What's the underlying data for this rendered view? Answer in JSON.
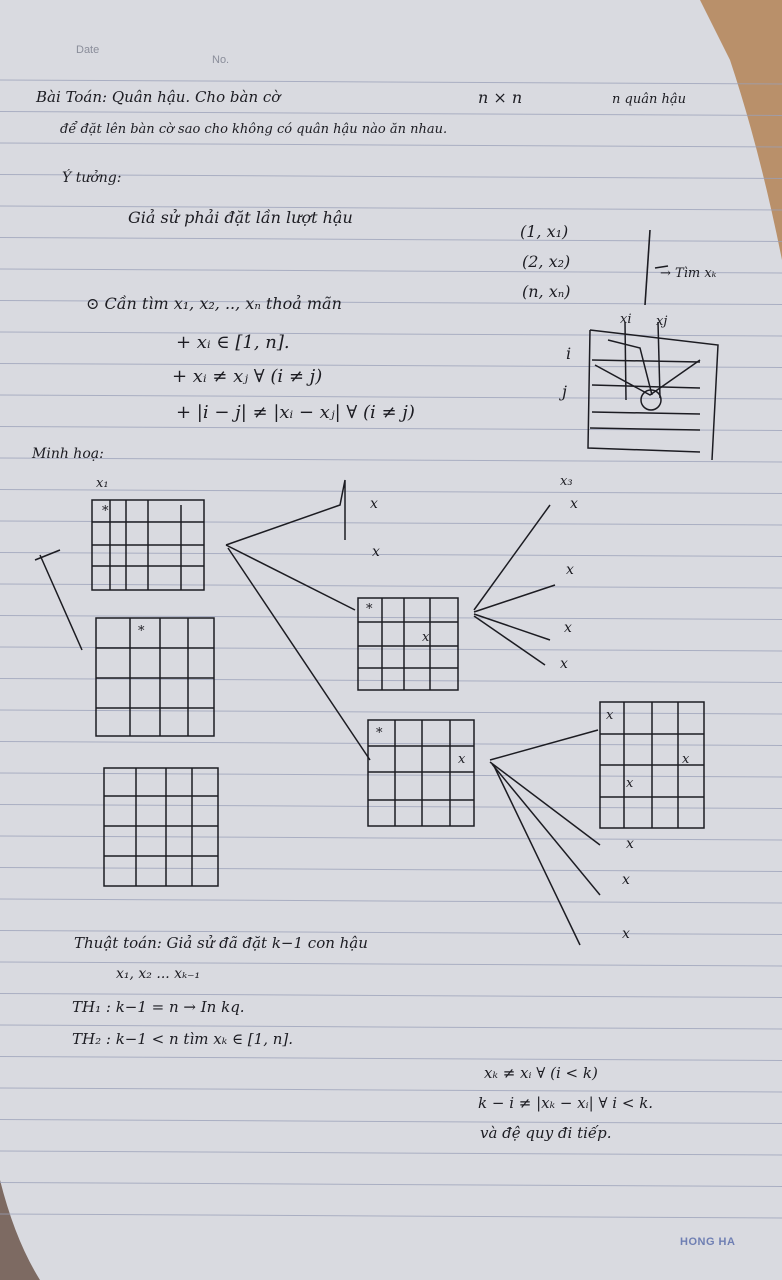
{
  "header": {
    "date_label": "Date",
    "no_label": "No."
  },
  "problem": {
    "line1": "Bài Toán: Quân hậu. Cho bàn cờ",
    "board_size": "n × n",
    "queens": "n quân hậu",
    "line2": "để đặt lên bàn cờ sao cho không có quân hậu nào ăn nhau."
  },
  "idea": {
    "heading": "Ý tưởng:",
    "assume": "Giả sử phải đặt lần lượt hậu",
    "pairs": [
      "(1, x₁)",
      "(2, x₂)",
      "(n, xₙ)"
    ],
    "find_note": "→ Tìm xₖ"
  },
  "conditions": {
    "need": "⊙ Cần tìm x₁, x₂, .., xₙ thoả mãn",
    "items": [
      "+ xᵢ ∈ [1, n].",
      "+ xᵢ ≠ xⱼ ∀ (i ≠ j)",
      "+ |i − j| ≠ |xᵢ − xⱼ| ∀ (i ≠ j)"
    ]
  },
  "sketch": {
    "xi": "xi",
    "xj": "xj",
    "i": "i",
    "j": "j"
  },
  "illustration": {
    "heading": "Minh hoạ:",
    "x1": "x₁",
    "x3": "x₃"
  },
  "marks": {
    "q": "*",
    "x": "x"
  },
  "algorithm": {
    "line1": "Thuật toán: Giả sử đã đặt k−1 con hậu",
    "line2": "x₁, x₂ ... xₖ₋₁",
    "case1": "TH₁ :  k−1 = n → In kq.",
    "case2": "TH₂ :  k−1 < n  tìm xₖ ∈ [1, n].",
    "cond1": "xₖ ≠ xᵢ ∀ (i < k)",
    "cond2": "k − i ≠ |xₖ − xᵢ| ∀ i < k.",
    "recurse": "và đệ quy đi tiếp."
  },
  "footer": {
    "brand": "HONG HA"
  }
}
